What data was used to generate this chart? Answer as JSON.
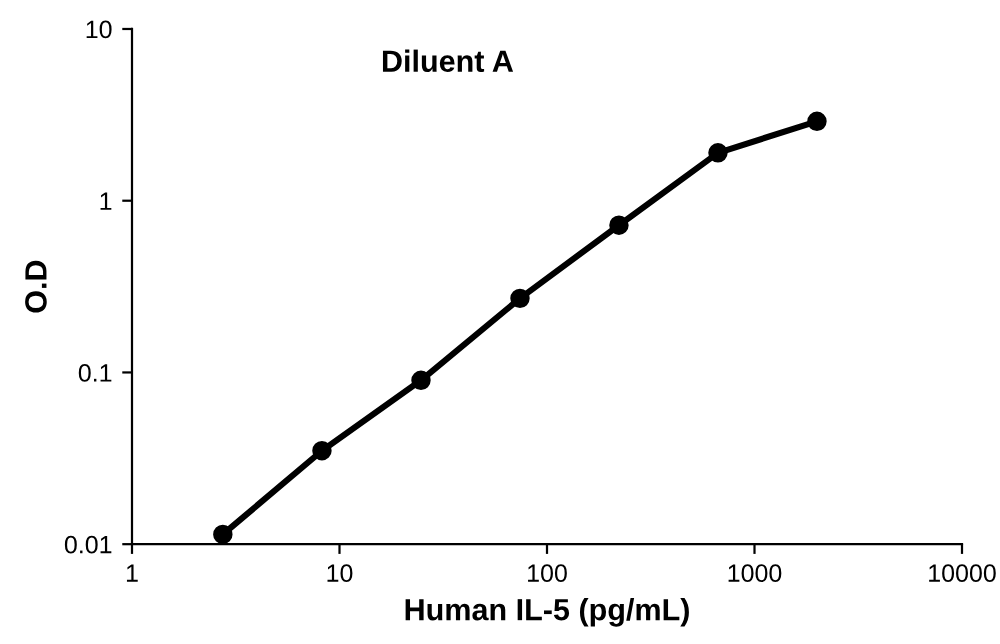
{
  "chart_data": {
    "type": "line",
    "title": "Diluent A",
    "xlabel": "Human IL-5 (pg/mL)",
    "ylabel": "O.D",
    "log": "xy",
    "x": [
      2.74,
      8.23,
      24.7,
      74.1,
      222.2,
      666.7,
      2000
    ],
    "series": [
      {
        "color": "#000000",
        "values": [
          0.0114,
          0.035,
          0.09,
          0.27,
          0.72,
          1.9,
          2.9
        ]
      }
    ],
    "xlim": [
      1,
      10000
    ],
    "xticks": [
      1,
      10,
      100,
      1000,
      10000
    ],
    "ylim": [
      0.01,
      10
    ],
    "yticks": [
      0.01,
      0.1,
      1,
      10
    ],
    "marker": "circle",
    "line_style": "solid",
    "grid": false,
    "legend": false
  }
}
